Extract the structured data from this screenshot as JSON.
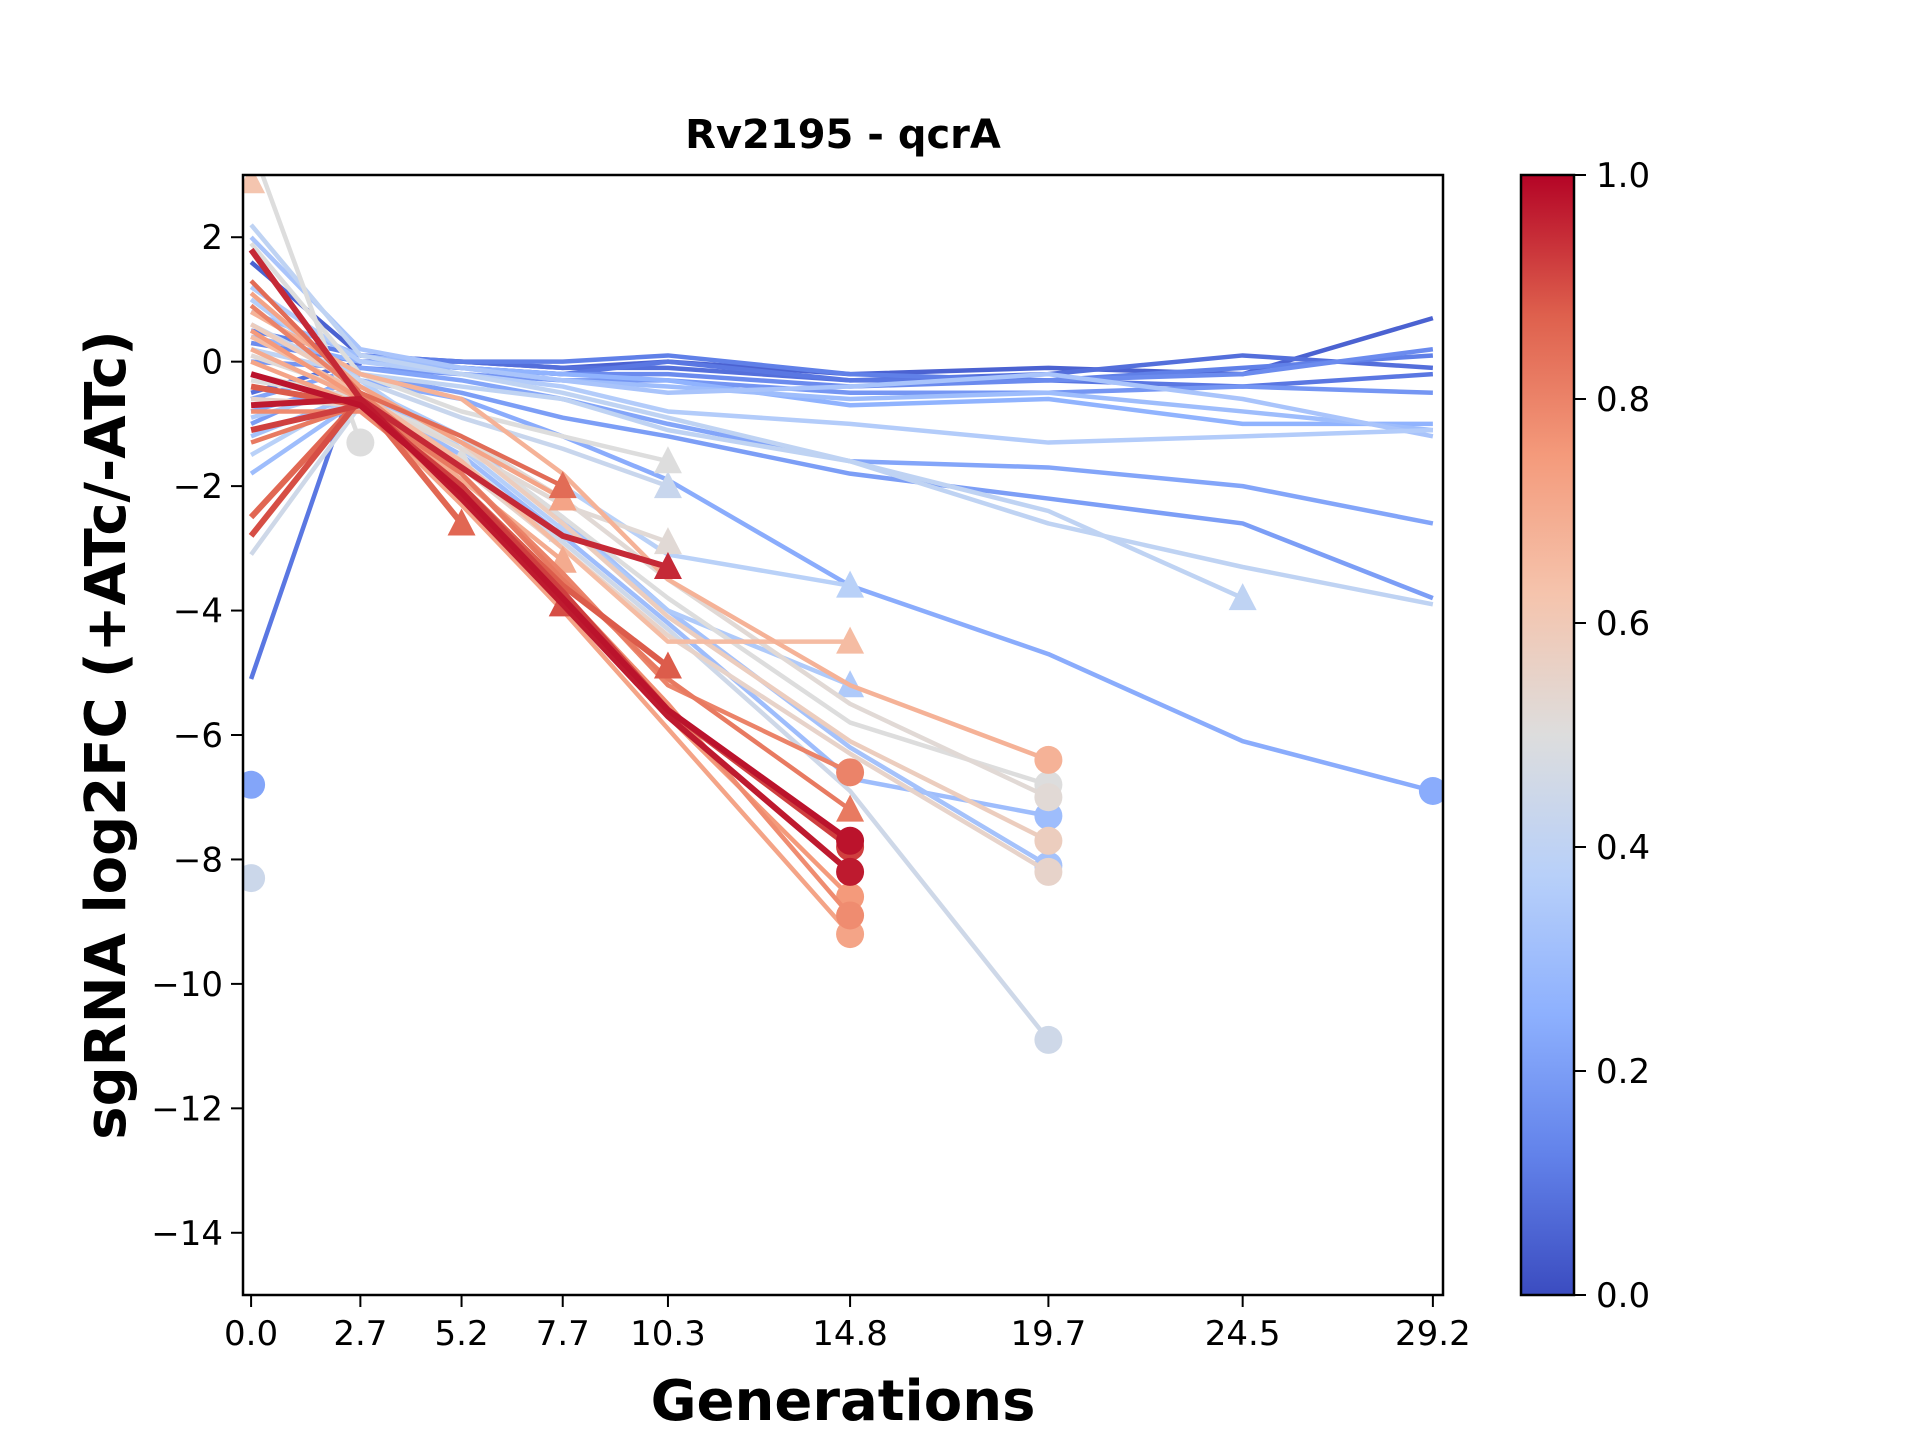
{
  "chart_data": {
    "type": "line",
    "title": "Rv2195 - qcrA",
    "xlabel": "Generations",
    "ylabel": "sgRNA log2FC (+ATc/-ATc)",
    "x_ticks": [
      0.0,
      2.7,
      5.2,
      7.7,
      10.3,
      14.8,
      19.7,
      24.5,
      29.2
    ],
    "x_tick_labels": [
      "0.0",
      "2.7",
      "5.2",
      "7.7",
      "10.3",
      "14.8",
      "19.7",
      "24.5",
      "29.2"
    ],
    "y_ticks": [
      2,
      0,
      -2,
      -4,
      -6,
      -8,
      -10,
      -12,
      -14
    ],
    "y_tick_labels": [
      "2",
      "0",
      "−2",
      "−4",
      "−6",
      "−8",
      "−10",
      "−12",
      "−14"
    ],
    "xlim": [
      -0.2,
      29.45
    ],
    "ylim": [
      -15,
      3
    ],
    "grid": false,
    "legend": "none",
    "colorbar": {
      "colormap": "coolwarm",
      "range": [
        0.0,
        1.0
      ],
      "ticks": [
        0.0,
        0.2,
        0.4,
        0.6,
        0.8,
        1.0
      ],
      "tick_labels": [
        "0.0",
        "0.2",
        "0.4",
        "0.6",
        "0.8",
        "1.0"
      ],
      "placement": "right"
    },
    "marker_note": "Each trajectory ends with a marker at its last point (triangle or circle).",
    "series": [
      {
        "c": 0.05,
        "m": "none",
        "x": [
          0.0,
          2.7,
          5.2,
          7.7,
          10.3,
          14.8,
          19.7,
          24.5,
          29.2
        ],
        "y": [
          1.6,
          0.1,
          0.0,
          -0.1,
          0.0,
          -0.2,
          -0.1,
          -0.2,
          0.7
        ]
      },
      {
        "c": 0.08,
        "m": "none",
        "x": [
          0.0,
          2.7,
          5.2,
          7.7,
          10.3,
          14.8,
          19.7,
          24.5,
          29.2
        ],
        "y": [
          -0.5,
          0.0,
          0.0,
          -0.1,
          -0.1,
          -0.3,
          -0.2,
          0.1,
          -0.1
        ]
      },
      {
        "c": 0.1,
        "m": "none",
        "x": [
          0.0,
          2.7,
          5.2,
          7.7,
          10.3,
          14.8,
          19.7,
          24.5,
          29.2
        ],
        "y": [
          -5.1,
          0.0,
          -0.1,
          -0.2,
          0.0,
          -0.3,
          -0.3,
          -0.4,
          -0.2
        ]
      },
      {
        "c": 0.12,
        "m": "none",
        "x": [
          0.0,
          2.7,
          5.2,
          7.7,
          10.3,
          14.8,
          19.7,
          24.5,
          29.2
        ],
        "y": [
          0.5,
          0.1,
          0.0,
          0.0,
          0.1,
          -0.2,
          -0.3,
          -0.1,
          0.1
        ]
      },
      {
        "c": 0.15,
        "m": "none",
        "x": [
          0.0,
          2.7,
          5.2,
          7.7,
          10.3,
          14.8,
          19.7,
          24.5,
          29.2
        ],
        "y": [
          0.3,
          0.0,
          -0.1,
          -0.2,
          -0.2,
          -0.4,
          -0.3,
          -0.2,
          0.2
        ]
      },
      {
        "c": 0.18,
        "m": "none",
        "x": [
          0.0,
          2.7,
          5.2,
          7.7,
          10.3,
          14.8,
          19.7,
          24.5,
          29.2
        ],
        "y": [
          0.0,
          -0.1,
          -0.2,
          -0.3,
          -0.3,
          -0.5,
          -0.5,
          -0.4,
          -0.5
        ]
      },
      {
        "c": 0.2,
        "m": "none",
        "x": [
          0.0,
          2.7,
          5.2,
          7.7,
          10.3,
          14.8,
          19.7,
          24.5,
          29.2
        ],
        "y": [
          -1.0,
          -0.2,
          -0.5,
          -0.9,
          -1.2,
          -1.8,
          -2.2,
          -2.6,
          -3.8
        ]
      },
      {
        "c": 0.22,
        "m": "none",
        "x": [
          0.0,
          2.7,
          5.2,
          7.7,
          10.3,
          14.8,
          19.7,
          24.5,
          29.2
        ],
        "y": [
          -0.6,
          -0.1,
          -0.3,
          -0.6,
          -1.0,
          -1.6,
          -1.7,
          -2.0,
          -2.6
        ]
      },
      {
        "c": 0.24,
        "m": "circle",
        "x": [
          0.0,
          2.7,
          5.2,
          7.7,
          10.3,
          14.8,
          19.7,
          24.5,
          29.2
        ],
        "y": [
          -0.8,
          -0.3,
          -0.6,
          -1.2,
          -1.9,
          -3.6,
          -4.7,
          -6.1,
          -6.9
        ]
      },
      {
        "c": 0.22,
        "m": "circle",
        "x": [
          0.0
        ],
        "y": [
          -6.8
        ]
      },
      {
        "c": 0.26,
        "m": "none",
        "x": [
          0.0,
          2.7,
          5.2,
          7.7,
          10.3,
          14.8,
          19.7,
          24.5,
          29.2
        ],
        "y": [
          0.4,
          0.0,
          -0.1,
          -0.2,
          -0.3,
          -0.7,
          -0.6,
          -1.0,
          -1.0
        ]
      },
      {
        "c": 0.3,
        "m": "none",
        "x": [
          0.0,
          2.7,
          5.2,
          7.7,
          10.3,
          14.8,
          19.7,
          24.5,
          29.2
        ],
        "y": [
          0.8,
          0.1,
          -0.1,
          -0.3,
          -0.4,
          -0.6,
          -0.5,
          -0.8,
          -1.1
        ]
      },
      {
        "c": 0.33,
        "m": "none",
        "x": [
          0.0,
          2.7,
          5.2,
          7.7,
          10.3,
          14.8,
          19.7,
          24.5,
          29.2
        ],
        "y": [
          2.0,
          0.2,
          -0.1,
          -0.3,
          -0.5,
          -0.4,
          -0.2,
          -0.6,
          -1.2
        ]
      },
      {
        "c": 0.36,
        "m": "none",
        "x": [
          0.0,
          2.7,
          5.2,
          7.7,
          10.3,
          14.8,
          19.7,
          24.5,
          29.2
        ],
        "y": [
          1.2,
          0.0,
          -0.2,
          -0.4,
          -0.8,
          -1.0,
          -1.3,
          -1.2,
          -1.1
        ]
      },
      {
        "c": 0.4,
        "m": "none",
        "x": [
          0.0,
          2.7,
          5.2,
          7.7,
          10.3,
          14.8,
          19.7,
          24.5,
          29.2
        ],
        "y": [
          0.2,
          -0.2,
          -0.4,
          -0.6,
          -1.1,
          -1.6,
          -2.6,
          -3.3,
          -3.9
        ]
      },
      {
        "c": 0.4,
        "m": "triangle",
        "x": [
          0.0,
          2.7,
          5.2,
          7.7,
          10.3,
          14.8,
          19.7,
          24.5
        ],
        "y": [
          2.2,
          0.1,
          -0.2,
          -0.5,
          -0.9,
          -1.6,
          -2.4,
          -3.8
        ]
      },
      {
        "c": 0.38,
        "m": "triangle",
        "x": [
          0.0,
          2.7,
          5.2,
          7.7,
          10.3,
          14.8
        ],
        "y": [
          -1.5,
          -0.5,
          -1.2,
          -2.0,
          -3.1,
          -3.6
        ]
      },
      {
        "c": 0.3,
        "m": "circle",
        "x": [
          0.0,
          2.7,
          5.2,
          7.7,
          10.3,
          14.8,
          19.7
        ],
        "y": [
          -1.8,
          -0.6,
          -1.5,
          -2.8,
          -4.2,
          -6.7,
          -7.3
        ]
      },
      {
        "c": 0.32,
        "m": "circle",
        "x": [
          0.0,
          2.7,
          5.2,
          7.7,
          10.3,
          14.8,
          19.7
        ],
        "y": [
          -1.2,
          -0.5,
          -1.3,
          -2.5,
          -4.0,
          -6.2,
          -8.1
        ]
      },
      {
        "c": 0.35,
        "m": "triangle",
        "x": [
          0.0,
          2.7,
          5.2,
          7.7,
          10.3,
          14.8
        ],
        "y": [
          -0.9,
          -0.4,
          -1.2,
          -2.6,
          -4.0,
          -5.2
        ]
      },
      {
        "c": 0.37,
        "m": "triangle",
        "x": [
          0.0,
          2.7,
          5.2,
          7.7
        ],
        "y": [
          1.0,
          -0.3,
          -1.4,
          -2.7
        ]
      },
      {
        "c": 0.45,
        "m": "circle",
        "x": [
          0.0,
          2.7,
          5.2,
          7.7,
          10.3,
          14.8,
          19.7
        ],
        "y": [
          -3.1,
          -0.7,
          -1.6,
          -2.9,
          -4.3,
          -6.9,
          -10.9
        ]
      },
      {
        "c": 0.44,
        "m": "circle",
        "x": [
          0.0
        ],
        "y": [
          -8.3
        ]
      },
      {
        "c": 0.43,
        "m": "triangle",
        "x": [
          0.0,
          2.7,
          5.2,
          7.7,
          10.3
        ],
        "y": [
          0.6,
          -0.3,
          -0.9,
          -1.4,
          -2.0
        ]
      },
      {
        "c": 0.5,
        "m": "triangle",
        "x": [
          0.0,
          2.7,
          5.2,
          7.7,
          10.3
        ],
        "y": [
          1.9,
          -0.2,
          -0.8,
          -1.2,
          -1.6
        ]
      },
      {
        "c": 0.5,
        "m": "circle",
        "x": [
          0.0,
          2.7
        ],
        "y": [
          3.5,
          -1.3
        ]
      },
      {
        "c": 0.5,
        "m": "triangle",
        "x": [
          0.0,
          2.7,
          5.2
        ],
        "y": [
          -0.4,
          -0.7,
          -1.6
        ]
      },
      {
        "c": 0.5,
        "m": "circle",
        "x": [
          0.0,
          2.7,
          5.2,
          7.7,
          10.3,
          14.8,
          19.7
        ],
        "y": [
          -0.3,
          -0.6,
          -1.3,
          -2.5,
          -3.8,
          -5.8,
          -6.8
        ]
      },
      {
        "c": 0.52,
        "m": "circle",
        "x": [
          0.0,
          2.7,
          5.2,
          7.7,
          10.3,
          14.8,
          19.7
        ],
        "y": [
          0.1,
          -0.5,
          -1.2,
          -2.2,
          -3.5,
          -5.5,
          -7.0
        ]
      },
      {
        "c": 0.52,
        "m": "triangle",
        "x": [
          0.0,
          2.7,
          5.2,
          7.7,
          10.3
        ],
        "y": [
          -0.2,
          -0.6,
          -1.4,
          -2.3,
          -2.9
        ]
      },
      {
        "c": 0.55,
        "m": "circle",
        "x": [
          0.0,
          2.7,
          5.2,
          7.7,
          10.3,
          14.8,
          19.7
        ],
        "y": [
          -0.6,
          -0.7,
          -1.7,
          -3.0,
          -4.4,
          -6.3,
          -8.2
        ]
      },
      {
        "c": 0.58,
        "m": "circle",
        "x": [
          0.0,
          2.7,
          5.2,
          7.7,
          10.3,
          14.8,
          19.7
        ],
        "y": [
          0.6,
          -0.4,
          -1.3,
          -2.6,
          -4.1,
          -6.1,
          -7.7
        ]
      },
      {
        "c": 0.62,
        "m": "triangle",
        "x": [
          0.0
        ],
        "y": [
          2.9
        ]
      },
      {
        "c": 0.65,
        "m": "triangle",
        "x": [
          0.0,
          2.7,
          5.2,
          7.7,
          10.3,
          14.8
        ],
        "y": [
          0.4,
          -0.5,
          -1.6,
          -3.0,
          -4.5,
          -4.5
        ]
      },
      {
        "c": 0.68,
        "m": "circle",
        "x": [
          0.0,
          2.7,
          5.2,
          7.7,
          10.3,
          14.8,
          19.7
        ],
        "y": [
          0.8,
          -0.2,
          -0.6,
          -1.8,
          -3.5,
          -5.2,
          -6.4
        ]
      },
      {
        "c": 0.7,
        "m": "triangle",
        "x": [
          0.0,
          2.7,
          5.2,
          7.7
        ],
        "y": [
          0.2,
          -0.6,
          -1.9,
          -3.2
        ]
      },
      {
        "c": 0.72,
        "m": "triangle",
        "x": [
          0.0,
          2.7,
          5.2,
          7.7
        ],
        "y": [
          1.1,
          -0.4,
          -1.3,
          -2.2
        ]
      },
      {
        "c": 0.72,
        "m": "circle",
        "x": [
          0.0,
          2.7,
          5.2,
          7.7,
          10.3,
          14.8
        ],
        "y": [
          0.0,
          -0.7,
          -2.3,
          -4.0,
          -5.9,
          -9.2
        ]
      },
      {
        "c": 0.75,
        "m": "circle",
        "x": [
          0.0,
          2.7,
          5.2,
          7.7,
          10.3,
          14.8
        ],
        "y": [
          0.5,
          -0.6,
          -2.0,
          -3.8,
          -5.7,
          -8.6
        ]
      },
      {
        "c": 0.78,
        "m": "circle",
        "x": [
          0.0,
          2.7,
          5.2,
          7.7,
          10.3,
          14.8
        ],
        "y": [
          -0.8,
          -0.8,
          -2.1,
          -3.7,
          -5.5,
          -8.9
        ]
      },
      {
        "c": 0.8,
        "m": "circle",
        "x": [
          0.0,
          2.7,
          5.2,
          7.7,
          10.3,
          14.8
        ],
        "y": [
          0.9,
          -0.5,
          -1.8,
          -3.4,
          -5.2,
          -6.6
        ]
      },
      {
        "c": 0.82,
        "m": "triangle",
        "x": [
          0.0,
          2.7,
          5.2,
          7.7,
          10.3,
          14.8
        ],
        "y": [
          -1.3,
          -0.7,
          -1.8,
          -3.5,
          -5.1,
          -7.2
        ]
      },
      {
        "c": 0.85,
        "m": "triangle",
        "x": [
          0.0,
          2.7,
          5.2,
          7.7
        ],
        "y": [
          1.3,
          -0.5,
          -1.2,
          -2.0
        ]
      },
      {
        "c": 0.86,
        "m": "triangle",
        "x": [
          0.0,
          2.7,
          5.2
        ],
        "y": [
          -2.5,
          -0.6,
          -2.6
        ]
      },
      {
        "c": 0.88,
        "m": "triangle",
        "x": [
          0.0,
          2.7,
          5.2,
          7.7,
          10.3
        ],
        "y": [
          -0.4,
          -0.7,
          -2.0,
          -3.6,
          -4.9
        ]
      },
      {
        "c": 0.9,
        "m": "triangle",
        "x": [
          0.0,
          2.7,
          5.2,
          7.7
        ],
        "y": [
          -2.8,
          -0.6,
          -2.1,
          -3.9
        ]
      },
      {
        "c": 0.92,
        "m": "circle",
        "x": [
          0.0,
          2.7,
          5.2,
          7.7,
          10.3,
          14.8
        ],
        "y": [
          -1.1,
          -0.7,
          -2.0,
          -3.7,
          -5.6,
          -7.8
        ]
      },
      {
        "c": 0.95,
        "m": "triangle",
        "x": [
          0.0,
          2.7,
          5.2,
          7.7,
          10.3
        ],
        "y": [
          1.8,
          -0.6,
          -1.7,
          -2.8,
          -3.3
        ]
      },
      {
        "c": 0.97,
        "m": "circle",
        "x": [
          0.0,
          2.7,
          5.2,
          7.7,
          10.3,
          14.8
        ],
        "y": [
          -0.7,
          -0.6,
          -2.2,
          -3.9,
          -5.7,
          -8.2
        ]
      },
      {
        "c": 0.98,
        "m": "circle",
        "x": [
          0.0,
          2.7,
          5.2,
          7.7,
          10.3,
          14.8
        ],
        "y": [
          -0.2,
          -0.7,
          -2.1,
          -3.8,
          -5.6,
          -7.7
        ]
      }
    ]
  }
}
